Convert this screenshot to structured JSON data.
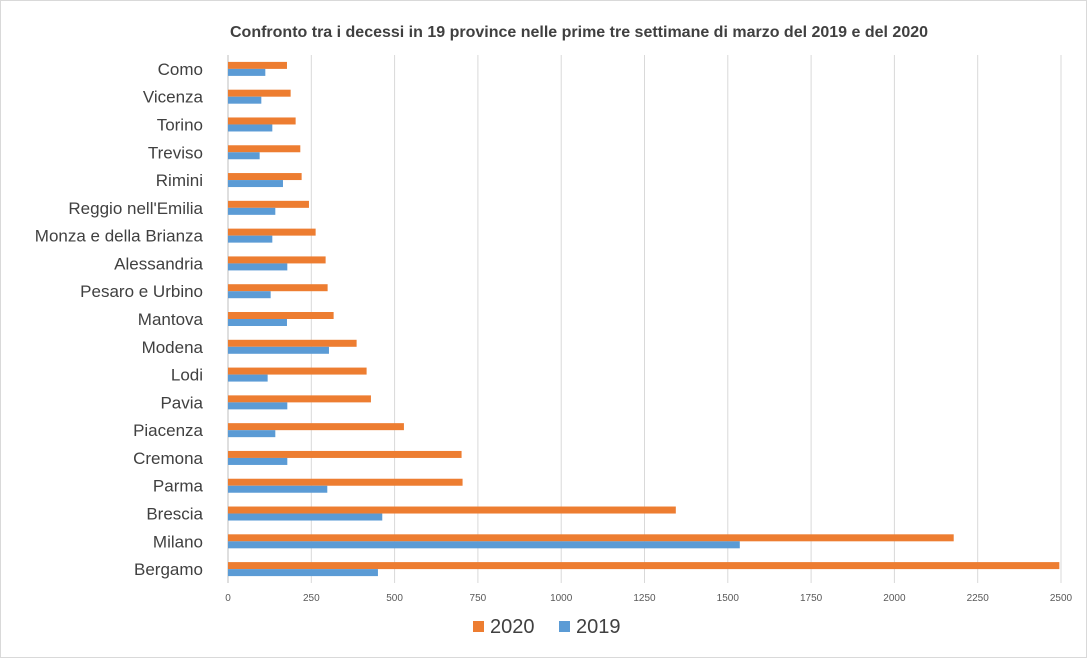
{
  "chart_data": {
    "type": "bar",
    "orientation": "horizontal",
    "title": "Confronto tra i decessi in 19 province nelle prime tre settimane di marzo del 2019 e del 2020",
    "xlabel": "",
    "ylabel": "",
    "xlim": [
      0,
      2500
    ],
    "x_ticks": [
      0,
      250,
      500,
      750,
      1000,
      1250,
      1500,
      1750,
      2000,
      2250,
      2500
    ],
    "grid": true,
    "legend_position": "bottom",
    "categories": [
      "Bergamo",
      "Milano",
      "Brescia",
      "Parma",
      "Cremona",
      "Piacenza",
      "Pavia",
      "Lodi",
      "Modena",
      "Mantova",
      "Pesaro e Urbino",
      "Alessandria",
      "Monza e della Brianza",
      "Reggio nell'Emilia",
      "Rimini",
      "Treviso",
      "Torino",
      "Vicenza",
      "Como"
    ],
    "series": [
      {
        "name": "2020",
        "color": "#ED7D31",
        "values": [
          2495,
          2178,
          1344,
          704,
          701,
          528,
          429,
          416,
          386,
          317,
          299,
          293,
          263,
          243,
          221,
          217,
          203,
          188,
          177
        ]
      },
      {
        "name": "2019",
        "color": "#5B9BD5",
        "values": [
          450,
          1536,
          463,
          298,
          178,
          142,
          178,
          119,
          303,
          177,
          128,
          178,
          133,
          142,
          165,
          95,
          133,
          100,
          112
        ]
      }
    ]
  }
}
